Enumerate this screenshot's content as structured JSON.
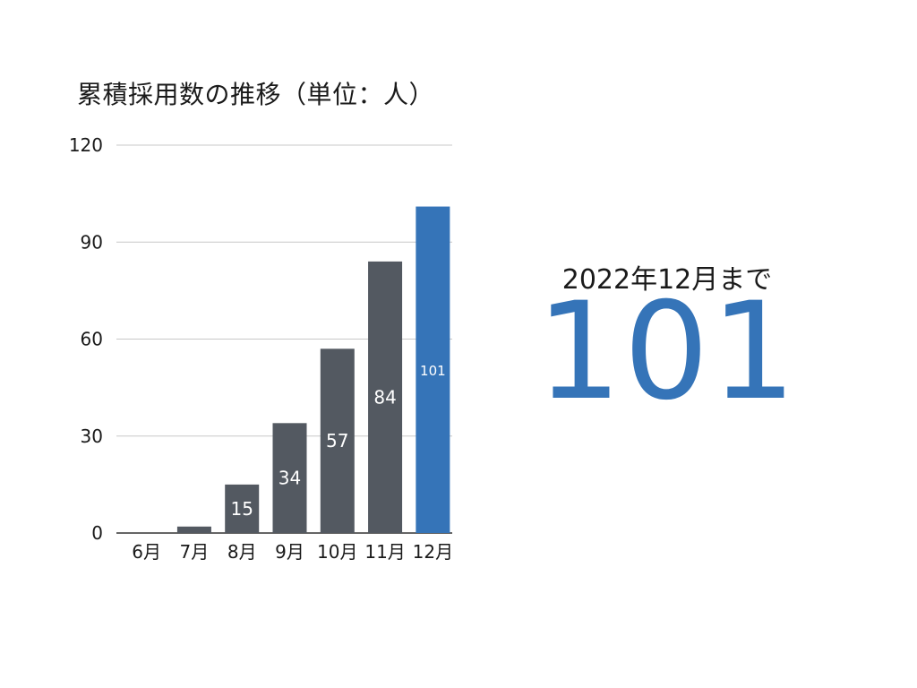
{
  "colors": {
    "bar_default": "#535961",
    "bar_highlight": "#3574b8",
    "gridline": "#c8c8c8",
    "axis_line": "#333333"
  },
  "chart_data": {
    "type": "bar",
    "title": "累積採用数の推移（単位：人）",
    "categories": [
      "6月",
      "7月",
      "8月",
      "9月",
      "10月",
      "11月",
      "12月"
    ],
    "values": [
      0,
      2,
      15,
      34,
      57,
      84,
      101
    ],
    "data_labels": [
      "",
      "",
      "15",
      "34",
      "57",
      "84",
      "101"
    ],
    "highlight_index": 6,
    "ylim": [
      0,
      120
    ],
    "yticks": [
      0,
      30,
      60,
      90,
      120
    ],
    "grid": true,
    "legend": "none",
    "xlabel": "",
    "ylabel": ""
  },
  "summary": {
    "caption": "2022年12月まで",
    "value": "101",
    "color": "#3574b8"
  }
}
